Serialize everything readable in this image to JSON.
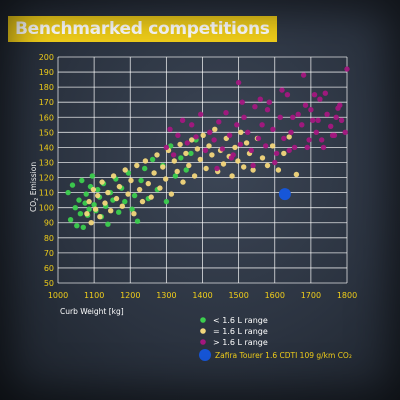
{
  "chart_data": {
    "type": "scatter",
    "title": "Benchmarked competitions",
    "xlabel": "Curb Weight [kg]",
    "ylabel": "CO2 Emission",
    "xlim": [
      1000,
      1800
    ],
    "ylim": [
      50,
      200
    ],
    "xticks": [
      1000,
      1100,
      1200,
      1300,
      1400,
      1500,
      1600,
      1700,
      1800
    ],
    "yticks": [
      50,
      60,
      70,
      80,
      90,
      100,
      110,
      120,
      130,
      140,
      150,
      160,
      170,
      180,
      190,
      200
    ],
    "grid": true,
    "legend_position": "bottom-right",
    "series": [
      {
        "name": "< 1.6 L range",
        "color": "#3ccf4e",
        "x": [
          1028,
          1035,
          1040,
          1048,
          1052,
          1058,
          1062,
          1066,
          1070,
          1075,
          1078,
          1082,
          1086,
          1090,
          1095,
          1100,
          1105,
          1110,
          1115,
          1120,
          1126,
          1132,
          1138,
          1145,
          1152,
          1160,
          1168,
          1176,
          1185,
          1195,
          1205,
          1212,
          1220,
          1230,
          1240,
          1250,
          1262,
          1275,
          1290,
          1300,
          1312,
          1325,
          1340,
          1355,
          1368,
          1382
        ],
        "y": [
          110,
          92,
          115,
          100,
          88,
          105,
          96,
          118,
          87,
          103,
          109,
          95,
          99,
          114,
          121,
          102,
          98,
          112,
          107,
          94,
          116,
          101,
          89,
          110,
          105,
          119,
          97,
          113,
          104,
          123,
          99,
          108,
          91,
          118,
          126,
          106,
          132,
          112,
          128,
          104,
          141,
          121,
          133,
          125,
          136,
          145
        ]
      },
      {
        "name": "= 1.6 L range",
        "color": "#f3d77c",
        "x": [
          1080,
          1086,
          1092,
          1098,
          1104,
          1110,
          1116,
          1122,
          1130,
          1138,
          1146,
          1154,
          1162,
          1170,
          1178,
          1186,
          1194,
          1202,
          1210,
          1218,
          1226,
          1234,
          1242,
          1250,
          1258,
          1266,
          1274,
          1282,
          1290,
          1298,
          1306,
          1314,
          1322,
          1330,
          1338,
          1346,
          1354,
          1362,
          1370,
          1378,
          1386,
          1394,
          1402,
          1410,
          1418,
          1426,
          1434,
          1442,
          1450,
          1458,
          1466,
          1474,
          1482,
          1490,
          1498,
          1506,
          1514,
          1522,
          1530,
          1540,
          1552,
          1566,
          1580,
          1594,
          1610,
          1625,
          1640,
          1660
        ],
        "y": [
          96,
          104,
          90,
          112,
          99,
          108,
          94,
          117,
          103,
          110,
          98,
          121,
          106,
          114,
          101,
          125,
          109,
          118,
          96,
          128,
          112,
          104,
          131,
          116,
          107,
          123,
          135,
          113,
          127,
          119,
          138,
          109,
          131,
          124,
          142,
          117,
          136,
          128,
          145,
          121,
          139,
          132,
          148,
          126,
          141,
          135,
          152,
          124,
          138,
          129,
          146,
          134,
          121,
          140,
          131,
          150,
          127,
          143,
          136,
          125,
          146,
          133,
          128,
          141,
          125,
          136,
          147,
          122
        ]
      },
      {
        "name": "> 1.6 L range",
        "color": "#a4177f",
        "x": [
          1300,
          1310,
          1320,
          1332,
          1345,
          1358,
          1370,
          1382,
          1395,
          1408,
          1420,
          1432,
          1445,
          1455,
          1465,
          1475,
          1485,
          1495,
          1505,
          1515,
          1525,
          1535,
          1545,
          1555,
          1565,
          1575,
          1585,
          1595,
          1605,
          1615,
          1625,
          1635,
          1645,
          1655,
          1665,
          1675,
          1685,
          1695,
          1705,
          1715,
          1725,
          1735,
          1745,
          1755,
          1765,
          1775,
          1785,
          1795,
          1500,
          1560,
          1620,
          1680,
          1700,
          1720,
          1740,
          1760,
          1780,
          1800,
          1650,
          1600,
          1540,
          1480,
          1440,
          1690,
          1730,
          1770,
          1510,
          1580,
          1640,
          1710
        ],
        "y": [
          140,
          152,
          135,
          148,
          158,
          143,
          155,
          147,
          162,
          138,
          150,
          145,
          157,
          139,
          163,
          148,
          135,
          155,
          142,
          160,
          150,
          138,
          167,
          146,
          155,
          141,
          170,
          152,
          136,
          160,
          146,
          175,
          150,
          140,
          162,
          155,
          168,
          145,
          158,
          150,
          172,
          140,
          162,
          154,
          148,
          166,
          158,
          150,
          183,
          172,
          178,
          188,
          165,
          158,
          176,
          148,
          168,
          192,
          160,
          130,
          128,
          133,
          126,
          140,
          145,
          160,
          170,
          165,
          138,
          175
        ]
      },
      {
        "name": "Zafira Tourer 1.6 CDTI 109 g/km CO₂",
        "color": "#1656d8",
        "x": [
          1628
        ],
        "y": [
          109
        ]
      }
    ]
  },
  "labels": {
    "title": "Benchmarked competitions",
    "xlabel": "Curb Weight [kg]",
    "ylabel_prefix": "CO",
    "ylabel_sub": "2",
    "ylabel_suffix": " Emission",
    "legend": [
      "< 1.6 L range",
      "= 1.6 L range",
      "> 1.6 L range",
      "Zafira Tourer 1.6 CDTI 109 g/km CO₂"
    ]
  }
}
